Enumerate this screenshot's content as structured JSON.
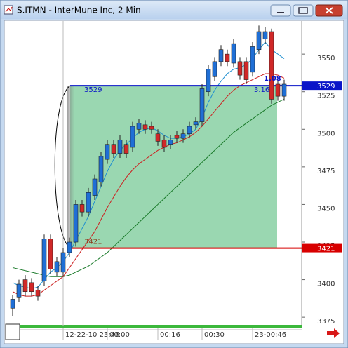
{
  "window_title": "S.ITMN - InterMune Inc, 2 Min",
  "chart_data": {
    "type": "candlestick",
    "categories": [
      null,
      null,
      null,
      null,
      null,
      null,
      null,
      null,
      "12-22-10 23:46",
      null,
      null,
      null,
      null,
      null,
      null,
      "00:00",
      null,
      null,
      null,
      null,
      null,
      null,
      null,
      "00:16",
      null,
      null,
      null,
      null,
      null,
      null,
      "00:30",
      null,
      null,
      null,
      null,
      null,
      null,
      null,
      "23-00:46",
      null,
      null,
      null,
      null,
      null
    ],
    "open": [
      3381,
      3388,
      3400,
      3398,
      3393,
      3399,
      3427,
      3405,
      3405,
      3418,
      3425,
      3450,
      3445,
      3456,
      3465,
      3480,
      3490,
      3484,
      3490,
      3488,
      3500,
      3503,
      3502,
      3497,
      3493,
      3490,
      3496,
      3494,
      3497,
      3503,
      3505,
      3525,
      3535,
      3545,
      3550,
      3544,
      3545,
      3545,
      3538,
      3553,
      3560,
      3565,
      3530,
      3522
    ],
    "high": [
      3390,
      3400,
      3403,
      3401,
      3396,
      3430,
      3430,
      3415,
      3421,
      3428,
      3453,
      3453,
      3461,
      3470,
      3485,
      3493,
      3493,
      3496,
      3493,
      3505,
      3507,
      3506,
      3505,
      3500,
      3496,
      3496,
      3499,
      3500,
      3505,
      3508,
      3530,
      3543,
      3548,
      3556,
      3553,
      3560,
      3548,
      3548,
      3558,
      3569,
      3568,
      3567,
      3533,
      3533
    ],
    "low": [
      3376,
      3385,
      3389,
      3389,
      3386,
      3396,
      3404,
      3402,
      3402,
      3415,
      3422,
      3442,
      3442,
      3453,
      3462,
      3477,
      3481,
      3481,
      3481,
      3485,
      3497,
      3497,
      3497,
      3489,
      3485,
      3487,
      3491,
      3491,
      3494,
      3500,
      3502,
      3522,
      3532,
      3542,
      3542,
      3541,
      3533,
      3530,
      3535,
      3550,
      3557,
      3517,
      3519,
      3519
    ],
    "close": [
      3387,
      3397,
      3392,
      3392,
      3389,
      3427,
      3407,
      3412,
      3418,
      3425,
      3450,
      3445,
      3458,
      3467,
      3482,
      3490,
      3484,
      3493,
      3484,
      3502,
      3504,
      3500,
      3500,
      3492,
      3488,
      3493,
      3494,
      3497,
      3502,
      3505,
      3527,
      3540,
      3545,
      3553,
      3545,
      3557,
      3536,
      3533,
      3555,
      3565,
      3565,
      3520,
      3522,
      3530
    ],
    "up_color": "#1f6fd6",
    "down_color": "#d02828",
    "moving_averages": [
      {
        "color": "#1a7a2a",
        "values": [
          3408,
          3407,
          3406,
          3405,
          3404,
          3403,
          3402,
          3402,
          3402,
          3403,
          3405,
          3407,
          3409,
          3412,
          3415,
          3418,
          3422,
          3426,
          3430,
          3434,
          3438,
          3442,
          3446,
          3450,
          3454,
          3458,
          3462,
          3466,
          3470,
          3474,
          3478,
          3482,
          3486,
          3490,
          3494,
          3498,
          3501,
          3504,
          3507,
          3510,
          3513,
          3516,
          3518,
          3520
        ]
      },
      {
        "color": "#cc2020",
        "values": [
          3392,
          3390,
          3389,
          3389,
          3390,
          3393,
          3396,
          3399,
          3402,
          3408,
          3414,
          3420,
          3426,
          3432,
          3440,
          3448,
          3455,
          3462,
          3468,
          3473,
          3477,
          3480,
          3483,
          3486,
          3488,
          3490,
          3491,
          3493,
          3495,
          3498,
          3502,
          3507,
          3512,
          3517,
          3522,
          3526,
          3529,
          3531,
          3533,
          3535,
          3537,
          3537,
          3536,
          3534
        ]
      },
      {
        "color": "#1f8fd0",
        "values": [
          3398,
          3396,
          3395,
          3394,
          3395,
          3400,
          3405,
          3408,
          3412,
          3418,
          3426,
          3434,
          3442,
          3452,
          3462,
          3472,
          3480,
          3486,
          3490,
          3494,
          3498,
          3500,
          3501,
          3499,
          3496,
          3494,
          3494,
          3495,
          3497,
          3500,
          3508,
          3518,
          3526,
          3532,
          3537,
          3540,
          3541,
          3543,
          3547,
          3553,
          3558,
          3553,
          3550,
          3547
        ]
      }
    ],
    "ylim": [
      3369,
      3572
    ],
    "yticks": [
      3375,
      3400,
      3425,
      3450,
      3475,
      3500,
      3525,
      3550
    ],
    "levels": [
      {
        "value": 3529,
        "color": "#0a14c8"
      },
      {
        "value": 3421,
        "color": "#d80000"
      }
    ],
    "zone_color": "#8fd3a8",
    "annotations": [
      "3.16",
      "1.08"
    ]
  }
}
